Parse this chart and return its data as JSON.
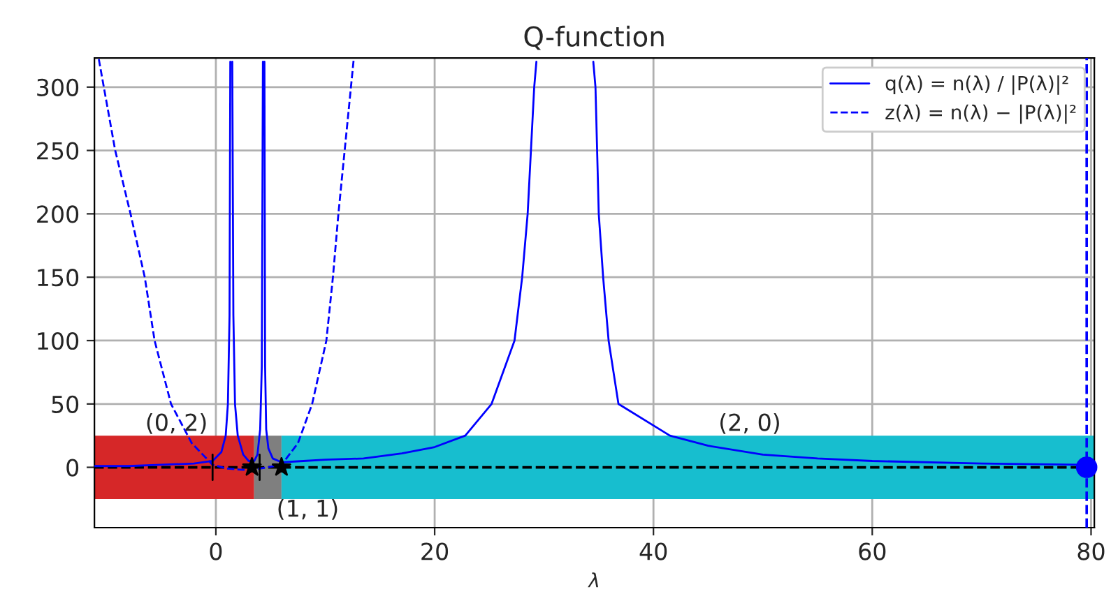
{
  "chart_data": {
    "type": "line",
    "title": "Q-function",
    "xlabel": "λ",
    "xlim": [
      -11.1,
      80.3
    ],
    "ylim": [
      -47.6,
      323
    ],
    "xticks": [
      0,
      20,
      40,
      60,
      80
    ],
    "yticks": [
      0,
      50,
      100,
      150,
      200,
      250,
      300
    ],
    "grid": true,
    "legend": "top right",
    "series": [
      {
        "type": "area",
        "color": "#d62728",
        "x": [
          -11.1,
          -11.1,
          3.5,
          3.5
        ],
        "values": [
          -25,
          25,
          25,
          -25
        ]
      },
      {
        "type": "area",
        "color": "#7f7f7f",
        "x": [
          3.5,
          3.5,
          6.0,
          6.0
        ],
        "values": [
          -25,
          25,
          25,
          -25
        ]
      },
      {
        "type": "area",
        "color": "#17becf",
        "x": [
          6.0,
          6.0,
          80.3,
          80.3
        ],
        "values": [
          -25,
          25,
          25,
          -25
        ]
      },
      {
        "name": "q(λ) = n(λ) / |P(λ)|²",
        "color": "#0000ff",
        "line_style": "solid",
        "x": [
          -11.1,
          -8,
          -5,
          -2,
          -0.3,
          0.5,
          0.9,
          1.1,
          1.25,
          1.32,
          1.38,
          1.5,
          1.6,
          1.75,
          2.0,
          2.5,
          3.0,
          3.5,
          3.8,
          4.05,
          4.2,
          4.3,
          4.36,
          4.44,
          4.5,
          4.6,
          4.8,
          5.2,
          6.0,
          8,
          10,
          13.5,
          17,
          20,
          22.8,
          25.2,
          27.3,
          28.0,
          28.5,
          28.8,
          29.1,
          29.3,
          32,
          34.5,
          34.7,
          35.0,
          35.4,
          35.9,
          36.8,
          41.5,
          45,
          50,
          55,
          60,
          70,
          79.6
        ],
        "values": [
          1,
          1,
          2,
          3,
          5,
          12,
          25,
          50,
          120,
          320,
          null,
          320,
          120,
          50,
          25,
          10,
          5,
          5,
          10,
          30,
          80,
          320,
          null,
          320,
          80,
          30,
          15,
          7,
          4,
          5,
          6,
          7,
          11,
          16,
          25,
          50,
          100,
          150,
          200,
          250,
          300,
          320,
          null,
          320,
          300,
          200,
          150,
          100,
          50,
          25,
          17,
          10,
          7,
          5,
          3,
          2
        ]
      },
      {
        "name": "z(λ) = n(λ) − |P(λ)|²",
        "color": "#0000ff",
        "line_style": "dashed",
        "x": [
          -10.7,
          -9.2,
          -7.8,
          -6.5,
          -5.6,
          -4.1,
          -2.2,
          -0.3,
          1,
          2.5,
          4,
          6.0,
          7.5,
          8.8,
          10.1,
          10.7,
          11.2,
          12.6
        ],
        "values": [
          322,
          250,
          200,
          150,
          100,
          50,
          19,
          2,
          -1,
          -2,
          -1,
          2,
          19,
          50,
          100,
          150,
          200,
          322
        ]
      },
      {
        "type": "scatter",
        "marker": "star",
        "color": "#000000",
        "x": [
          3.3,
          6.0
        ],
        "values": [
          0,
          0
        ]
      },
      {
        "type": "line",
        "color": "#000000",
        "line_style": "solid",
        "x": [
          -0.3,
          -0.3
        ],
        "values": [
          -10,
          10
        ]
      },
      {
        "type": "line",
        "color": "#000000",
        "line_style": "solid",
        "x": [
          4.0,
          4.0
        ],
        "values": [
          -10,
          10
        ]
      },
      {
        "type": "scatter",
        "marker": "circle",
        "color": "#0000ff",
        "x": [
          79.6
        ],
        "values": [
          0
        ]
      }
    ],
    "ref_lines": [
      {
        "axis": "y",
        "value": 0,
        "color": "#000000",
        "line_style": "dashed"
      },
      {
        "axis": "x",
        "value": 79.6,
        "color": "#0000ff",
        "line_style": "dashed"
      }
    ],
    "annotations": [
      {
        "text": "(0, 2)",
        "x": -3.6,
        "y": 25
      },
      {
        "text": "(1, 1)",
        "x": 8.4,
        "y": -25
      },
      {
        "text": "(2, 0)",
        "x": 48.8,
        "y": 25
      }
    ]
  }
}
